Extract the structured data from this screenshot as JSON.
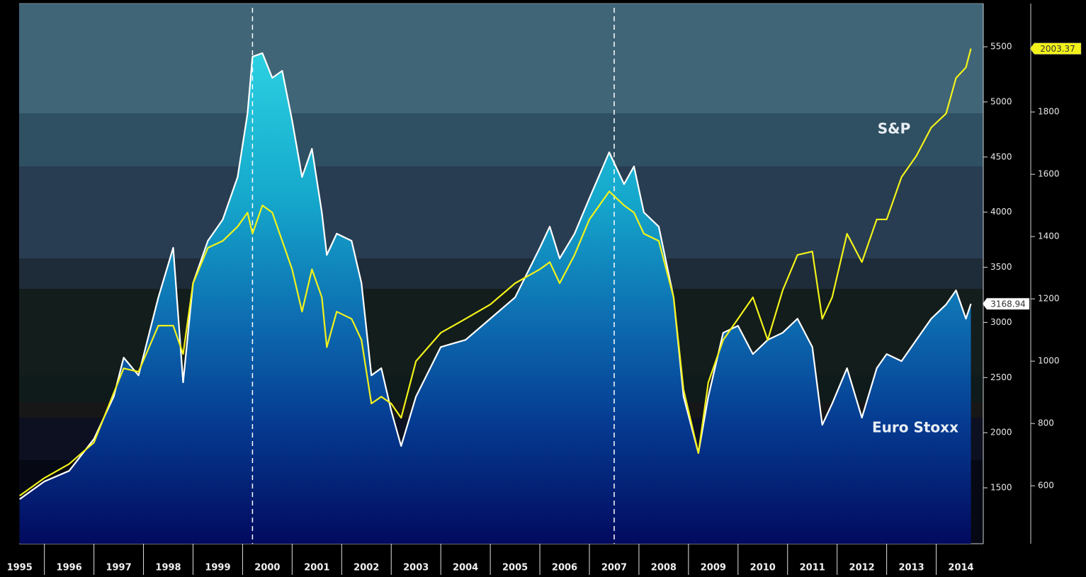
{
  "chart_data": {
    "type": "line",
    "xlim": [
      1995.49,
      2014.95
    ],
    "xticks": [
      1995,
      1996,
      1997,
      1998,
      1999,
      2000,
      2001,
      2002,
      2003,
      2004,
      2005,
      2006,
      2007,
      2008,
      2009,
      2010,
      2011,
      2012,
      2013,
      2014
    ],
    "ylim": [
      993,
      5892
    ],
    "yticks": [
      1500,
      2000,
      2500,
      3000,
      3500,
      4000,
      4500,
      5000,
      5500
    ],
    "y2lim": [
      414,
      2148
    ],
    "y2ticks": [
      600,
      800,
      1000,
      1200,
      1400,
      1600,
      1800
    ],
    "vlines": [
      2000.2,
      2007.5
    ],
    "x": [
      1995.5,
      1996.0,
      1996.5,
      1997.0,
      1997.4,
      1997.6,
      1997.9,
      1998.3,
      1998.6,
      1998.8,
      1999.0,
      1999.3,
      1999.6,
      1999.9,
      2000.1,
      2000.2,
      2000.4,
      2000.6,
      2000.8,
      2001.0,
      2001.2,
      2001.4,
      2001.6,
      2001.7,
      2001.9,
      2002.2,
      2002.4,
      2002.6,
      2002.8,
      2003.0,
      2003.2,
      2003.5,
      2004.0,
      2004.5,
      2005.0,
      2005.5,
      2006.0,
      2006.2,
      2006.4,
      2006.7,
      2007.0,
      2007.4,
      2007.7,
      2007.9,
      2008.1,
      2008.4,
      2008.7,
      2008.9,
      2009.2,
      2009.4,
      2009.7,
      2010.0,
      2010.3,
      2010.6,
      2010.9,
      2011.2,
      2011.5,
      2011.7,
      2011.9,
      2012.2,
      2012.5,
      2012.8,
      2013.0,
      2013.3,
      2013.6,
      2013.9,
      2014.2,
      2014.4,
      2014.6,
      2014.7
    ],
    "series": [
      {
        "name": "Euro Stoxx",
        "color": "#ffffff",
        "fill": true,
        "label_last": true,
        "values": [
          1397,
          1558,
          1654,
          1943,
          2328,
          2681,
          2520,
          3227,
          3677,
          2457,
          3356,
          3740,
          3933,
          4319,
          4896,
          5410,
          5442,
          5218,
          5282,
          4832,
          4319,
          4575,
          3998,
          3612,
          3805,
          3740,
          3356,
          2520,
          2585,
          2200,
          1879,
          2328,
          2777,
          2842,
          3034,
          3227,
          3677,
          3869,
          3580,
          3805,
          4126,
          4543,
          4254,
          4415,
          3998,
          3869,
          3227,
          2328,
          1815,
          2328,
          2906,
          2970,
          2713,
          2842,
          2906,
          3034,
          2777,
          2071,
          2264,
          2585,
          2136,
          2585,
          2713,
          2649,
          2842,
          3034,
          3163,
          3291,
          3034,
          3168.94
        ]
      },
      {
        "name": "S&P",
        "color": "#f2f21a",
        "axis": "y2",
        "label_last": true,
        "values": [
          568,
          625,
          670,
          739,
          898,
          977,
          966,
          1114,
          1114,
          1023,
          1250,
          1364,
          1386,
          1432,
          1477,
          1409,
          1500,
          1477,
          1386,
          1295,
          1159,
          1295,
          1205,
          1045,
          1159,
          1136,
          1068,
          864,
          886,
          864,
          818,
          1000,
          1091,
          1136,
          1182,
          1250,
          1295,
          1318,
          1250,
          1341,
          1455,
          1545,
          1500,
          1477,
          1409,
          1386,
          1205,
          909,
          705,
          932,
          1068,
          1136,
          1205,
          1068,
          1227,
          1341,
          1352,
          1136,
          1205,
          1409,
          1318,
          1455,
          1455,
          1591,
          1659,
          1750,
          1795,
          1909,
          1943,
          2003.37
        ]
      }
    ]
  }
}
